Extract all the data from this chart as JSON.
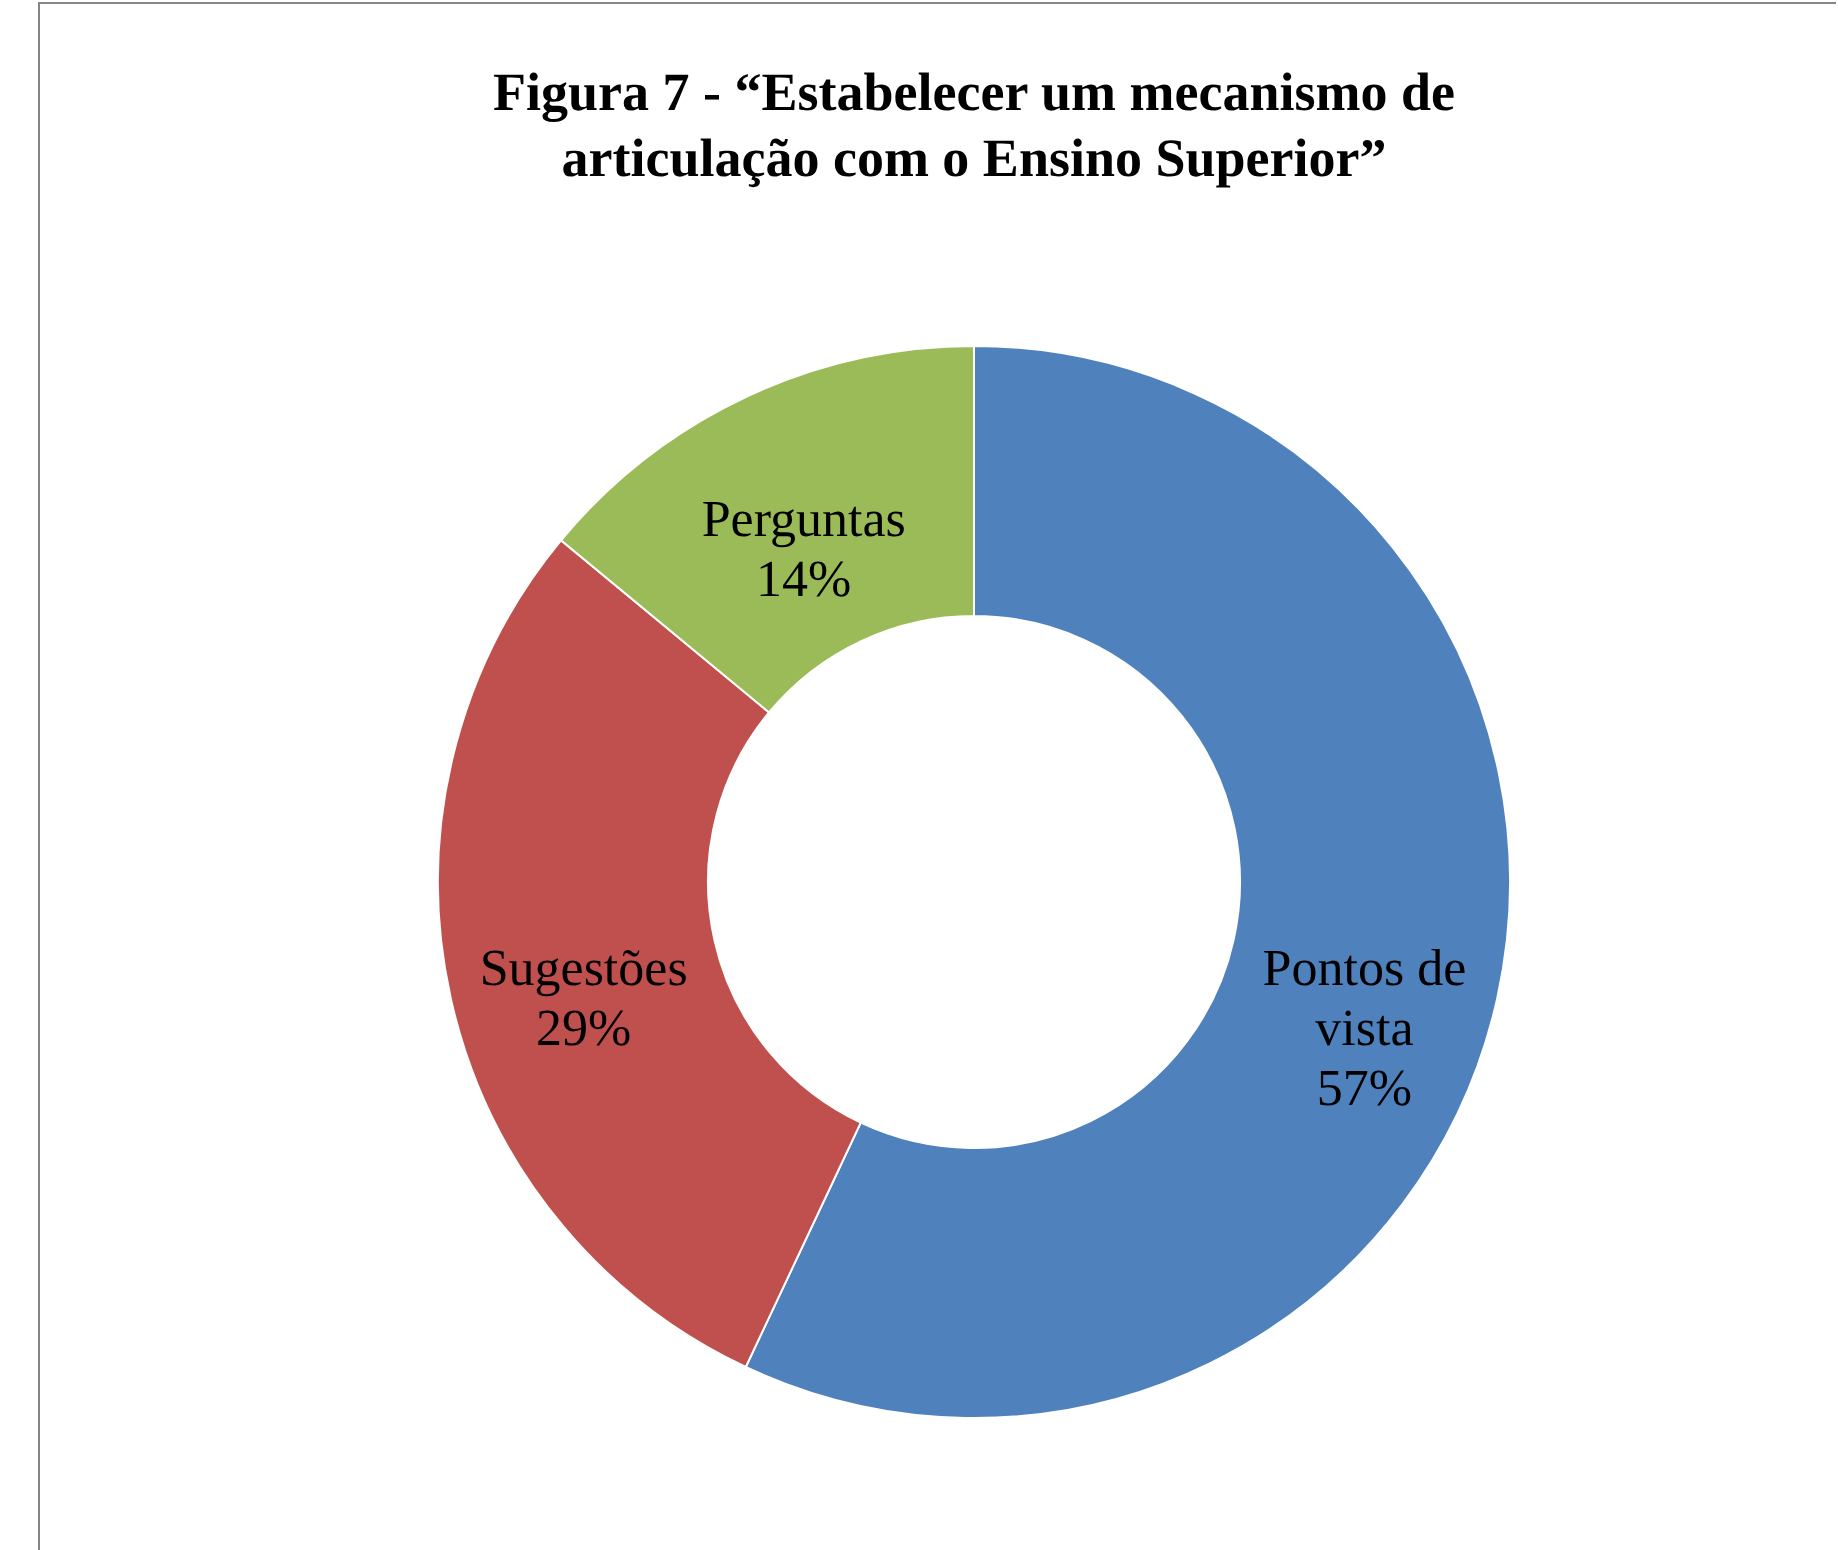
{
  "chart_data": {
    "type": "donut",
    "title": "Figura 7 - “Estabelecer um mecanismo de articulação com o Ensino Superior”",
    "categories": [
      "Pontos de vista",
      "Sugestões",
      "Perguntas"
    ],
    "values": [
      57,
      29,
      14
    ],
    "colors": [
      "#4f81bd",
      "#c0504d",
      "#9bbb59"
    ],
    "value_labels": [
      "57%",
      "29%",
      "14%"
    ]
  }
}
